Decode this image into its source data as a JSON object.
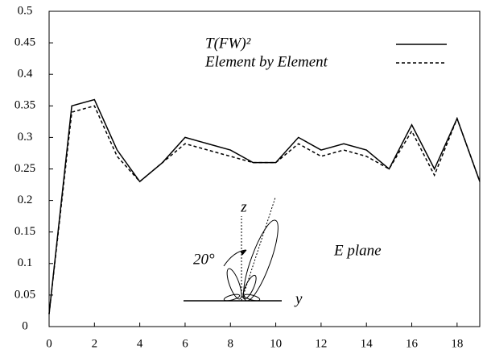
{
  "chart_data": {
    "type": "line",
    "x": [
      0,
      1,
      2,
      3,
      4,
      5,
      6,
      7,
      8,
      9,
      10,
      11,
      12,
      13,
      14,
      15,
      16,
      17,
      18,
      19
    ],
    "series": [
      {
        "name": "T(FW)²",
        "color": "#000000",
        "dash": "solid",
        "values": [
          0.02,
          0.35,
          0.36,
          0.28,
          0.23,
          0.26,
          0.3,
          0.29,
          0.28,
          0.26,
          0.26,
          0.3,
          0.28,
          0.29,
          0.28,
          0.25,
          0.32,
          0.25,
          0.33,
          0.23
        ]
      },
      {
        "name": "Element by Element",
        "color": "#000000",
        "dash": "dashed",
        "values": [
          0.02,
          0.34,
          0.35,
          0.27,
          0.23,
          0.26,
          0.29,
          0.28,
          0.27,
          0.26,
          0.26,
          0.29,
          0.27,
          0.28,
          0.27,
          0.25,
          0.31,
          0.24,
          0.33,
          0.23
        ]
      }
    ],
    "xlim": [
      0,
      19
    ],
    "xticks": [
      0,
      2,
      4,
      6,
      8,
      10,
      12,
      14,
      16,
      18
    ],
    "ylim": [
      0,
      0.5
    ],
    "yticks": [
      0,
      0.05,
      0.1,
      0.15,
      0.2,
      0.25,
      0.3,
      0.35,
      0.4,
      0.45,
      0.5
    ],
    "grid": false,
    "legend": "upper right",
    "annotations": [
      "z",
      "y",
      "20°",
      "E plane"
    ]
  }
}
